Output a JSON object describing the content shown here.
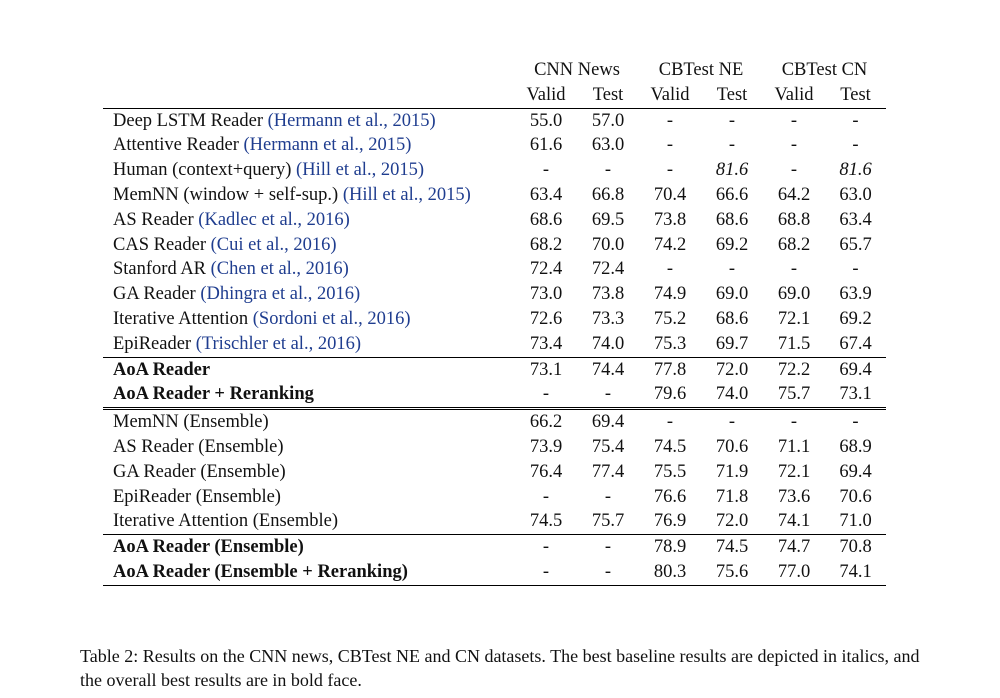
{
  "header": {
    "groups": [
      "CNN News",
      "CBTest NE",
      "CBTest CN"
    ],
    "subcols": [
      "Valid",
      "Test",
      "Valid",
      "Test",
      "Valid",
      "Test"
    ]
  },
  "rows_single": [
    {
      "name": "Deep LSTM Reader",
      "cite": "(Hermann et al., 2015)",
      "values": [
        "55.0",
        "57.0",
        "-",
        "-",
        "-",
        "-"
      ]
    },
    {
      "name": "Attentive Reader",
      "cite": "(Hermann et al., 2015)",
      "values": [
        "61.6",
        "63.0",
        "-",
        "-",
        "-",
        "-"
      ]
    },
    {
      "name": "Human (context+query)",
      "cite": "(Hill et al., 2015)",
      "values": [
        "-",
        "-",
        "-",
        "81.6",
        "-",
        "81.6"
      ]
    },
    {
      "name": "MemNN (window + self-sup.)",
      "cite": "(Hill et al., 2015)",
      "values": [
        "63.4",
        "66.8",
        "70.4",
        "66.6",
        "64.2",
        "63.0"
      ]
    },
    {
      "name": "AS Reader",
      "cite": "(Kadlec et al., 2016)",
      "values": [
        "68.6",
        "69.5",
        "73.8",
        "68.6",
        "68.8",
        "63.4"
      ]
    },
    {
      "name": "CAS Reader",
      "cite": "(Cui et al., 2016)",
      "values": [
        "68.2",
        "70.0",
        "74.2",
        "69.2",
        "68.2",
        "65.7"
      ]
    },
    {
      "name": "Stanford AR",
      "cite": "(Chen et al., 2016)",
      "values": [
        "72.4",
        "72.4",
        "-",
        "-",
        "-",
        "-"
      ]
    },
    {
      "name": "GA Reader",
      "cite": "(Dhingra et al., 2016)",
      "values": [
        "73.0",
        "73.8",
        "74.9",
        "69.0",
        "69.0",
        "63.9"
      ]
    },
    {
      "name": "Iterative Attention",
      "cite": "(Sordoni et al., 2016)",
      "values": [
        "72.6",
        "73.3",
        "75.2",
        "68.6",
        "72.1",
        "69.2"
      ]
    },
    {
      "name": "EpiReader",
      "cite": "(Trischler et al., 2016)",
      "values": [
        "73.4",
        "74.0",
        "75.3",
        "69.7",
        "71.5",
        "67.4"
      ]
    }
  ],
  "aoa_single": [
    {
      "name": "AoA Reader",
      "values": [
        "73.1",
        "74.4",
        "77.8",
        "72.0",
        "72.2",
        "69.4"
      ]
    },
    {
      "name": "AoA Reader + Reranking",
      "values": [
        "-",
        "-",
        "79.6",
        "74.0",
        "75.7",
        "73.1"
      ]
    }
  ],
  "rows_ensemble": [
    {
      "name": "MemNN (Ensemble)",
      "values": [
        "66.2",
        "69.4",
        "-",
        "-",
        "-",
        "-"
      ]
    },
    {
      "name": "AS Reader (Ensemble)",
      "values": [
        "73.9",
        "75.4",
        "74.5",
        "70.6",
        "71.1",
        "68.9"
      ]
    },
    {
      "name": "GA Reader (Ensemble)",
      "values": [
        "76.4",
        "77.4",
        "75.5",
        "71.9",
        "72.1",
        "69.4"
      ]
    },
    {
      "name": "EpiReader (Ensemble)",
      "values": [
        "-",
        "-",
        "76.6",
        "71.8",
        "73.6",
        "70.6"
      ]
    },
    {
      "name": "Iterative Attention (Ensemble)",
      "values": [
        "74.5",
        "75.7",
        "76.9",
        "72.0",
        "74.1",
        "71.0"
      ]
    }
  ],
  "aoa_ensemble": [
    {
      "name": "AoA Reader (Ensemble)",
      "values": [
        "-",
        "-",
        "78.9",
        "74.5",
        "74.7",
        "70.8"
      ]
    },
    {
      "name": "AoA Reader (Ensemble + Reranking)",
      "values": [
        "-",
        "-",
        "80.3",
        "75.6",
        "77.0",
        "74.1"
      ]
    }
  ],
  "caption": "Table 2:  Results on the CNN news, CBTest NE and CN datasets. The best baseline results are depicted in italics, and the overall best results are in bold face."
}
